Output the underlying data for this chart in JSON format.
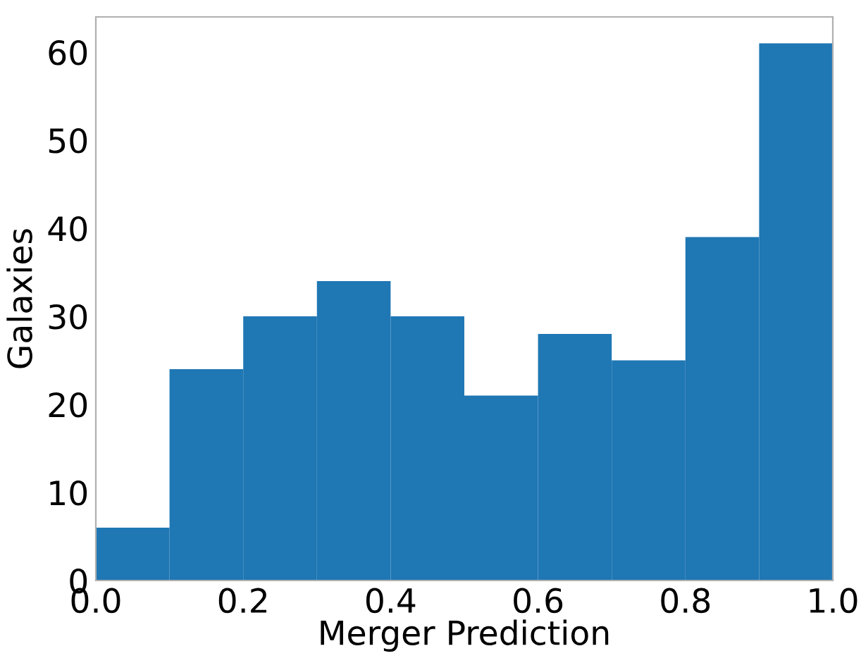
{
  "chart_data": {
    "type": "histogram",
    "xlabel": "Merger Prediction",
    "ylabel": "Galaxies",
    "bins": [
      0.0,
      0.1,
      0.2,
      0.3,
      0.4,
      0.5,
      0.6,
      0.7,
      0.8,
      0.9,
      1.0
    ],
    "values": [
      6,
      24,
      30,
      34,
      30,
      21,
      28,
      25,
      39,
      61
    ],
    "color": "#1f77b4",
    "xlim": [
      0.0,
      1.0
    ],
    "xticks": [
      {
        "value": 0.0,
        "label": "0.0"
      },
      {
        "value": 0.2,
        "label": "0.2"
      },
      {
        "value": 0.4,
        "label": "0.4"
      },
      {
        "value": 0.6,
        "label": "0.6"
      },
      {
        "value": 0.8,
        "label": "0.8"
      },
      {
        "value": 1.0,
        "label": "1.0"
      }
    ],
    "ylim": [
      0,
      64
    ],
    "yticks": [
      0,
      10,
      20,
      30,
      40,
      50,
      60
    ],
    "grid": false,
    "legend": false
  }
}
